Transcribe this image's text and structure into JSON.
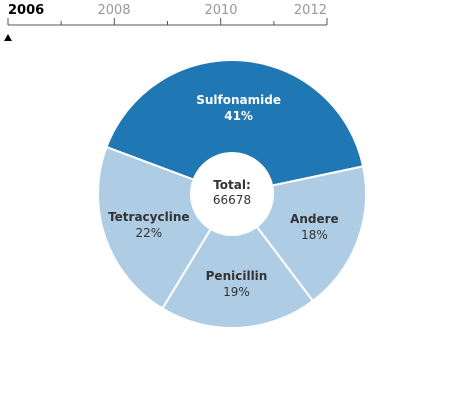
{
  "timeline": {
    "years": [
      "2006",
      "2008",
      "2010",
      "2012"
    ],
    "selected": "2006",
    "range": [
      2006,
      2012
    ]
  },
  "chart_data": {
    "type": "pie",
    "donut": true,
    "center_label": "Total:",
    "total": "66678",
    "slices": [
      {
        "name": "Sulfonamide",
        "percent": 41,
        "label": "41%",
        "color": "#1f77b4"
      },
      {
        "name": "Andere",
        "percent": 18,
        "label": "18%",
        "color": "#aecde5"
      },
      {
        "name": "Penicillin",
        "percent": 19,
        "label": "19%",
        "color": "#aecde5"
      },
      {
        "name": "Tetracycline",
        "percent": 22,
        "label": "22%",
        "color": "#aecde5"
      }
    ],
    "start_angle_deg": 290.5,
    "direction": "clockwise"
  },
  "colors": {
    "highlight": "#1f77b4",
    "muted": "#aecde5",
    "highlight_text": "#ffffff",
    "muted_text": "#333333",
    "axis": "#555555"
  }
}
